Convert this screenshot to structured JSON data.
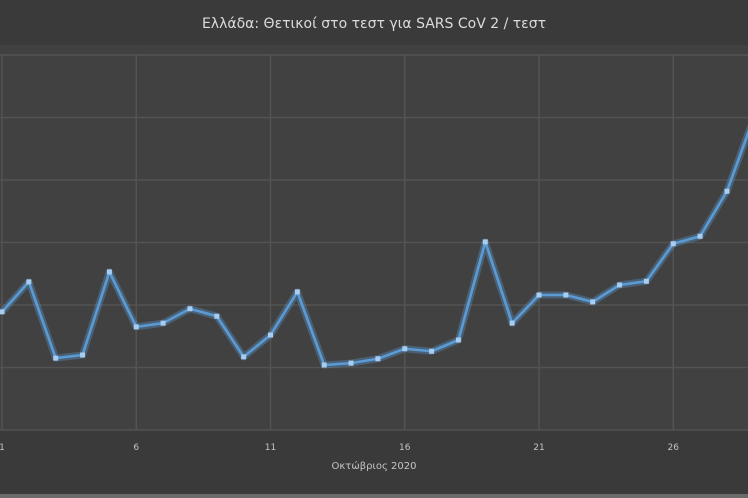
{
  "chart_data": {
    "type": "line",
    "title": "Ελλάδα: Θετικοί στο τεστ για SARS CoV 2 / τεστ",
    "xlabel": "Οκτώβριος 2020",
    "ylabel": "",
    "x": [
      1,
      2,
      3,
      4,
      5,
      6,
      7,
      8,
      9,
      10,
      11,
      12,
      13,
      14,
      15,
      16,
      17,
      18,
      19,
      20,
      21,
      22,
      23,
      24,
      25,
      26,
      27,
      28,
      29
    ],
    "xticks": [
      "1",
      "6",
      "11",
      "16",
      "21",
      "26"
    ],
    "values": [
      1.89,
      2.37,
      1.15,
      1.2,
      2.53,
      1.65,
      1.71,
      1.94,
      1.82,
      1.17,
      1.52,
      2.21,
      1.04,
      1.07,
      1.14,
      1.3,
      1.26,
      1.44,
      3.01,
      1.71,
      2.16,
      2.16,
      2.05,
      2.32,
      2.38,
      2.98,
      3.1,
      3.82,
      5.0
    ],
    "ylim": [
      0,
      6
    ],
    "grid": true,
    "line_color": "#5b9bd5",
    "background": "#3d3d3d"
  }
}
